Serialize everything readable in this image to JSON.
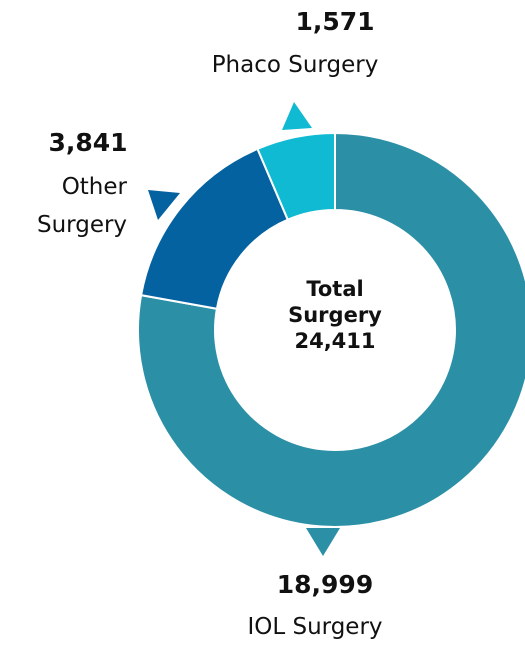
{
  "chart_data": {
    "type": "pie",
    "categories": [
      "IOL Surgery",
      "Other Surgery",
      "Phaco Surgery"
    ],
    "values": [
      18999,
      3841,
      1571
    ],
    "value_labels": [
      "18,999",
      "3,841",
      "1,571"
    ],
    "colors": [
      "#2b8fa6",
      "#0562a0",
      "#0fbad2"
    ],
    "center_title": "Total Surgery",
    "total": {
      "value": 24411,
      "label": "24,411"
    }
  }
}
